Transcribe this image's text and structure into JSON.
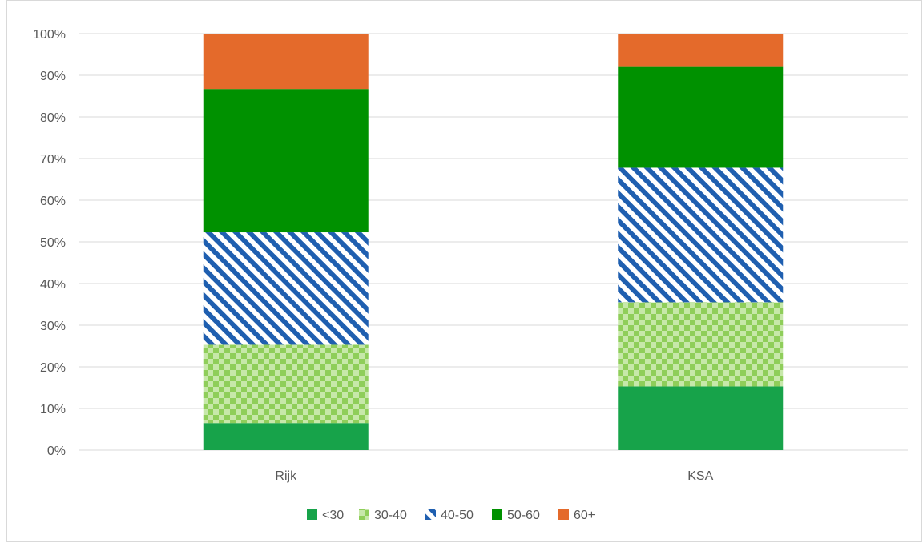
{
  "chart_data": {
    "type": "bar",
    "stacked": true,
    "normalized": true,
    "categories": [
      "Rijk",
      "KSA"
    ],
    "series": [
      {
        "name": "<30",
        "values": [
          6.5,
          15.3
        ],
        "color": "#17a34a",
        "pattern": "solid"
      },
      {
        "name": "30-40",
        "values": [
          18.8,
          20.2
        ],
        "color": "#8fce5a",
        "pattern": "checker"
      },
      {
        "name": "40-50",
        "values": [
          27.0,
          32.3
        ],
        "color": "#1f5fb0",
        "pattern": "diagonal"
      },
      {
        "name": "50-60",
        "values": [
          34.4,
          24.2
        ],
        "color": "#009100",
        "pattern": "solid"
      },
      {
        "name": "60+",
        "values": [
          13.3,
          8.0
        ],
        "color": "#e46a2b",
        "pattern": "solid"
      }
    ],
    "ylim": [
      0,
      100
    ],
    "yticks": [
      "0%",
      "10%",
      "20%",
      "30%",
      "40%",
      "50%",
      "60%",
      "70%",
      "80%",
      "90%",
      "100%"
    ],
    "grid": true,
    "legend_position": "bottom",
    "title": "",
    "xlabel": "",
    "ylabel": ""
  }
}
